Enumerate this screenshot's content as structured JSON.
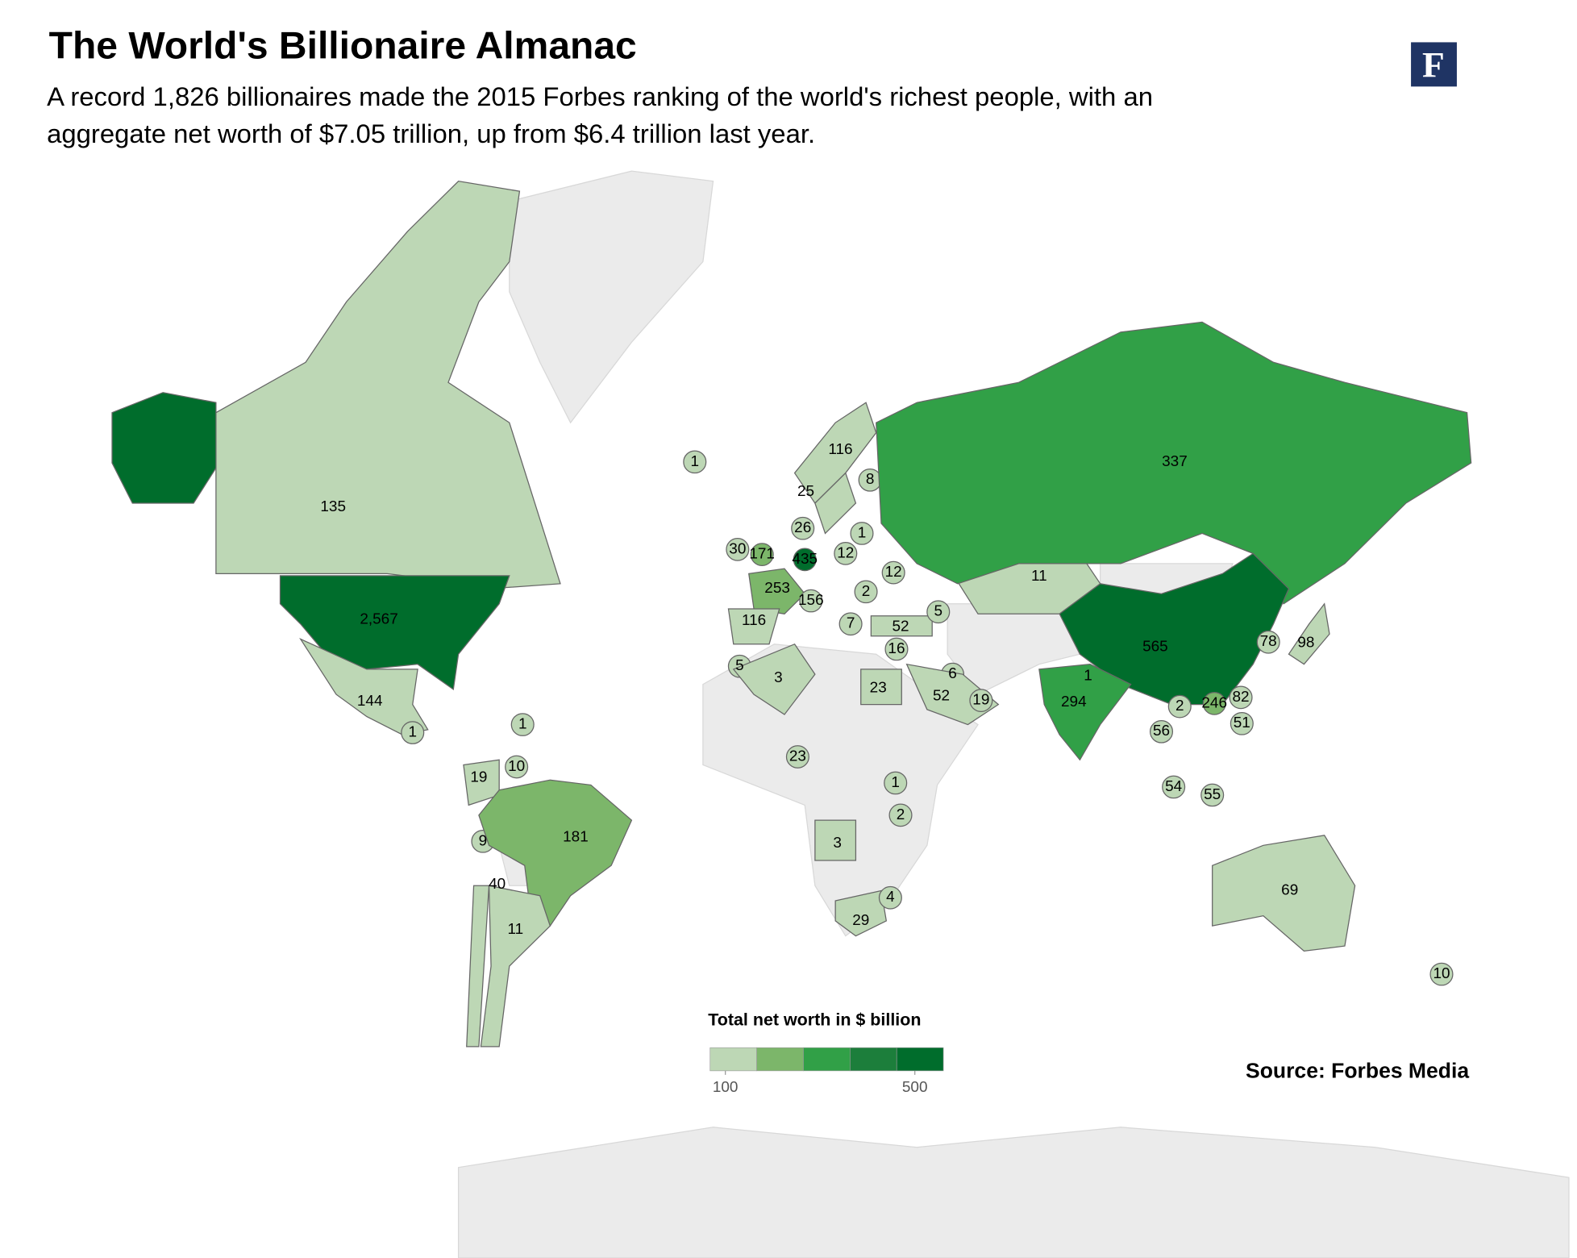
{
  "header": {
    "title": "The World's Billionaire Almanac",
    "subtitle_lines": [
      "A record 1,826 billionaires made the 2015 Forbes ranking of the world's richest people, with an",
      "aggregate net worth of $7.05 trillion, up from $6.4 trillion last year."
    ],
    "logo": "F"
  },
  "map": {
    "regions": [
      {
        "value": 135,
        "color": "#bdd7b5"
      },
      {
        "value": 2567,
        "label": "2,567",
        "color": "#006d2c"
      },
      {
        "value": 144,
        "color": "#bdd7b5"
      },
      {
        "value": 1,
        "color": "#bdd7b5"
      },
      {
        "value": 1,
        "color": "#bdd7b5"
      },
      {
        "value": 1,
        "color": "#bdd7b5"
      },
      {
        "value": 116,
        "color": "#bdd7b5"
      },
      {
        "value": 8,
        "color": "#bdd7b5"
      },
      {
        "value": 25,
        "color": "#bdd7b5"
      },
      {
        "value": 26,
        "color": "#bdd7b5"
      },
      {
        "value": 1,
        "color": "#bdd7b5"
      },
      {
        "value": 30,
        "color": "#bdd7b5"
      },
      {
        "value": 171,
        "color": "#7cb66a"
      },
      {
        "value": 435,
        "color": "#006d2c"
      },
      {
        "value": 12,
        "color": "#bdd7b5"
      },
      {
        "value": 253,
        "color": "#7cb66a"
      },
      {
        "value": 156,
        "color": "#bdd7b5"
      },
      {
        "value": 2,
        "color": "#bdd7b5"
      },
      {
        "value": 12,
        "color": "#bdd7b5"
      },
      {
        "value": 116,
        "color": "#bdd7b5"
      },
      {
        "value": 7,
        "color": "#bdd7b5"
      },
      {
        "value": 52,
        "color": "#bdd7b5"
      },
      {
        "value": 5,
        "color": "#bdd7b5"
      },
      {
        "value": 16,
        "color": "#bdd7b5"
      },
      {
        "value": 5,
        "color": "#bdd7b5"
      },
      {
        "value": 3,
        "color": "#bdd7b5"
      },
      {
        "value": 23,
        "color": "#bdd7b5"
      },
      {
        "value": 6,
        "color": "#bdd7b5"
      },
      {
        "value": 52,
        "color": "#bdd7b5"
      },
      {
        "value": 19,
        "color": "#bdd7b5"
      },
      {
        "value": 11,
        "color": "#bdd7b5"
      },
      {
        "value": 337,
        "color": "#31a047"
      },
      {
        "value": 565,
        "color": "#006d2c"
      },
      {
        "value": 1,
        "color": "#bdd7b5"
      },
      {
        "value": 294,
        "color": "#31a047"
      },
      {
        "value": 2,
        "color": "#bdd7b5"
      },
      {
        "value": 246,
        "color": "#7cb66a"
      },
      {
        "value": 82,
        "color": "#bdd7b5"
      },
      {
        "value": 51,
        "color": "#bdd7b5"
      },
      {
        "value": 78,
        "color": "#bdd7b5"
      },
      {
        "value": 98,
        "color": "#bdd7b5"
      },
      {
        "value": 56,
        "color": "#bdd7b5"
      },
      {
        "value": 54,
        "color": "#bdd7b5"
      },
      {
        "value": 55,
        "color": "#bdd7b5"
      },
      {
        "value": 69,
        "color": "#bdd7b5"
      },
      {
        "value": 10,
        "color": "#bdd7b5"
      },
      {
        "value": 23,
        "color": "#bdd7b5"
      },
      {
        "value": 1,
        "color": "#bdd7b5"
      },
      {
        "value": 2,
        "color": "#bdd7b5"
      },
      {
        "value": 3,
        "color": "#bdd7b5"
      },
      {
        "value": 29,
        "color": "#bdd7b5"
      },
      {
        "value": 4,
        "color": "#bdd7b5"
      },
      {
        "value": 19,
        "color": "#bdd7b5"
      },
      {
        "value": 10,
        "color": "#bdd7b5"
      },
      {
        "value": 9,
        "color": "#bdd7b5"
      },
      {
        "value": 181,
        "color": "#7cb66a"
      },
      {
        "value": 40,
        "color": "#bdd7b5"
      },
      {
        "value": 11,
        "color": "#bdd7b5"
      }
    ]
  },
  "legend": {
    "title": "Total net worth in $ billion",
    "colors": [
      "#bdd7b5",
      "#7cb66a",
      "#31a047",
      "#1c7e3b",
      "#006d2c"
    ],
    "ticks": [
      100,
      500
    ]
  },
  "source": "Source: Forbes Media"
}
